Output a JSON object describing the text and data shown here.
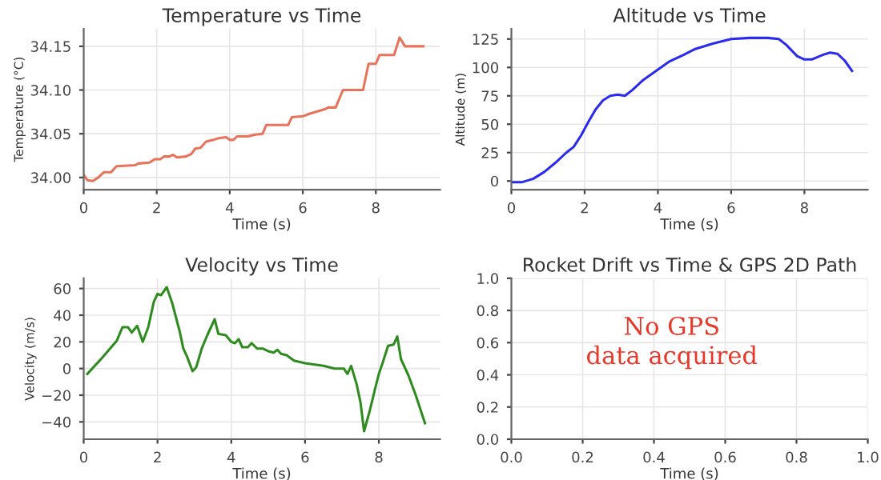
{
  "chart_data": [
    {
      "type": "line",
      "title": "Temperature vs Time",
      "xlabel": "Time (s)",
      "ylabel": "Temperature (°C)",
      "grid": true,
      "xlim": [
        0,
        9.76
      ],
      "ylim": [
        33.986,
        34.17
      ],
      "xticks": [
        0,
        2,
        4,
        6,
        8
      ],
      "yticks": [
        {
          "value": 34.0,
          "label": "34.00"
        },
        {
          "value": 34.05,
          "label": "34.05"
        },
        {
          "value": 34.1,
          "label": "34.10"
        },
        {
          "value": 34.15,
          "label": "34.15"
        }
      ],
      "series": [
        {
          "color": "#e8735a",
          "x": [
            0,
            0.1,
            0.25,
            0.4,
            0.55,
            0.75,
            0.9,
            1.4,
            1.5,
            1.8,
            1.95,
            2.1,
            2.2,
            2.35,
            2.45,
            2.55,
            2.8,
            2.95,
            3.05,
            3.2,
            3.35,
            3.55,
            3.7,
            3.9,
            4.0,
            4.1,
            4.2,
            4.5,
            4.7,
            4.9,
            5.0,
            5.6,
            5.7,
            6.0,
            6.2,
            6.6,
            6.7,
            6.9,
            7.1,
            7.65,
            7.8,
            8.0,
            8.1,
            8.5,
            8.65,
            8.8,
            9.3
          ],
          "values": [
            34.003,
            33.997,
            33.996,
            34.0,
            34.006,
            34.006,
            34.013,
            34.014,
            34.016,
            34.017,
            34.021,
            34.021,
            34.024,
            34.024,
            34.026,
            34.023,
            34.024,
            34.027,
            34.033,
            34.034,
            34.041,
            34.043,
            34.045,
            34.046,
            34.043,
            34.043,
            34.047,
            34.047,
            34.049,
            34.05,
            34.06,
            34.06,
            34.069,
            34.07,
            34.073,
            34.078,
            34.08,
            34.08,
            34.1,
            34.1,
            34.13,
            34.13,
            34.14,
            34.14,
            34.16,
            34.15,
            34.15
          ]
        }
      ]
    },
    {
      "type": "line",
      "title": "Altitude vs Time",
      "xlabel": "Time (s)",
      "ylabel": "Altitude (m)",
      "grid": true,
      "xlim": [
        0,
        9.73
      ],
      "ylim": [
        -7.7,
        134
      ],
      "xticks": [
        0,
        2,
        4,
        6,
        8
      ],
      "yticks": [
        0,
        25,
        50,
        75,
        100,
        125
      ],
      "series": [
        {
          "color": "#2b2bf0",
          "x": [
            0,
            0.3,
            0.6,
            0.9,
            1.2,
            1.5,
            1.7,
            1.9,
            2.1,
            2.3,
            2.5,
            2.7,
            2.9,
            3.1,
            3.3,
            3.6,
            4.0,
            4.3,
            4.7,
            5.0,
            5.5,
            6.0,
            6.5,
            7.0,
            7.3,
            7.5,
            7.8,
            8.0,
            8.2,
            8.5,
            8.7,
            8.9,
            9.1,
            9.3
          ],
          "values": [
            -1,
            -1,
            2,
            8,
            16,
            25,
            30,
            40,
            52,
            63,
            71,
            75,
            76,
            75,
            80,
            89,
            98,
            105,
            111,
            116,
            121,
            125,
            126,
            126,
            125,
            120,
            110,
            107,
            107,
            111,
            113,
            112,
            106,
            97
          ]
        }
      ]
    },
    {
      "type": "line",
      "title": "Velocity vs Time",
      "xlabel": "Time (s)",
      "ylabel": "Velocity (m/s)",
      "grid": true,
      "xlim": [
        0,
        9.66
      ],
      "ylim": [
        -53,
        67.7
      ],
      "xticks": [
        0,
        2,
        4,
        6,
        8
      ],
      "yticks": [
        {
          "value": -40,
          "label": "−40"
        },
        {
          "value": -20,
          "label": "−20"
        },
        0,
        20,
        40,
        60
      ],
      "series": [
        {
          "color": "#2e8b1e",
          "x": [
            0.1,
            0.5,
            0.9,
            1.05,
            1.2,
            1.3,
            1.45,
            1.6,
            1.75,
            1.9,
            2.0,
            2.1,
            2.25,
            2.4,
            2.6,
            2.7,
            2.8,
            2.95,
            3.05,
            3.2,
            3.35,
            3.55,
            3.65,
            3.85,
            4.0,
            4.1,
            4.2,
            4.3,
            4.45,
            4.55,
            4.7,
            4.85,
            5.0,
            5.15,
            5.25,
            5.35,
            5.5,
            5.7,
            6.0,
            6.5,
            6.8,
            7.05,
            7.15,
            7.25,
            7.4,
            7.5,
            7.6,
            7.75,
            7.9,
            8.0,
            8.1,
            8.25,
            8.4,
            8.5,
            8.6,
            8.8,
            9.0,
            9.25
          ],
          "values": [
            -4,
            8,
            21,
            31,
            31,
            27,
            32,
            20,
            31,
            50,
            56,
            55,
            61,
            49,
            28,
            15,
            9,
            -2,
            1,
            15,
            25,
            37,
            26,
            25,
            20,
            19,
            22,
            16,
            16,
            19,
            15,
            15,
            13,
            12,
            14,
            11,
            10,
            6,
            4,
            2,
            0,
            0,
            -4,
            2,
            -12,
            -25,
            -47,
            -32,
            -15,
            -4,
            4,
            17,
            18,
            24,
            7,
            -5,
            -20,
            -41
          ]
        }
      ]
    },
    {
      "type": "line",
      "title": "Rocket Drift vs Time & GPS 2D Path",
      "xlabel": "Time (s)",
      "grid": true,
      "xlim": [
        0,
        1
      ],
      "ylim": [
        0,
        1
      ],
      "xticks": [
        {
          "value": 0,
          "label": "0.0"
        },
        {
          "value": 0.2,
          "label": "0.2"
        },
        {
          "value": 0.4,
          "label": "0.4"
        },
        {
          "value": 0.6,
          "label": "0.6"
        },
        {
          "value": 0.8,
          "label": "0.8"
        },
        {
          "value": 1,
          "label": "1.0"
        }
      ],
      "yticks": [
        {
          "value": 0,
          "label": "0.0"
        },
        {
          "value": 0.2,
          "label": "0.2"
        },
        {
          "value": 0.4,
          "label": "0.4"
        },
        {
          "value": 0.6,
          "label": "0.6"
        },
        {
          "value": 0.8,
          "label": "0.8"
        },
        {
          "value": 1,
          "label": "1.0"
        }
      ],
      "annotations": [
        "No GPS\ndata acquired"
      ]
    }
  ]
}
